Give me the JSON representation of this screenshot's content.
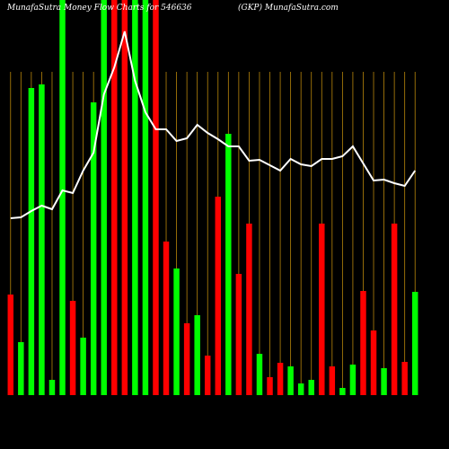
{
  "chart_data": {
    "type": "bar-line",
    "title": "MunafaSutra Money Flow Charts for 546636",
    "subtitle": "(GKP) MunafaSutra.com",
    "categories": [
      null,
      null,
      null,
      null,
      null,
      null,
      null,
      null,
      null,
      null,
      null,
      null,
      null,
      null,
      null,
      null,
      null,
      null,
      null,
      null,
      null,
      null,
      null,
      null,
      null,
      null,
      null,
      null,
      null,
      null,
      null,
      null,
      null,
      null,
      null,
      null,
      null,
      null,
      null,
      null
    ],
    "ylim": [
      0,
      440
    ],
    "background": "#000000",
    "separator_color": "#b8860b",
    "series": [
      {
        "type": "bar",
        "values": [
          112,
          59,
          342,
          346,
          17,
          440,
          105,
          64,
          326,
          440,
          440,
          440,
          440,
          440,
          440,
          171,
          141,
          80,
          89,
          44,
          221,
          291,
          135,
          191,
          46,
          20,
          36,
          32,
          13,
          17,
          191,
          32,
          8,
          34,
          116,
          72,
          30,
          191,
          37,
          115
        ],
        "colors": [
          "#ff0000",
          "#00ff00",
          "#00ff00",
          "#00ff00",
          "#00ff00",
          "#00ff00",
          "#ff0000",
          "#00ff00",
          "#00ff00",
          "#00ff00",
          "#ff0000",
          "#ff0000",
          "#00ff00",
          "#00ff00",
          "#ff0000",
          "#ff0000",
          "#00ff00",
          "#ff0000",
          "#00ff00",
          "#ff0000",
          "#ff0000",
          "#00ff00",
          "#ff0000",
          "#ff0000",
          "#00ff00",
          "#ff0000",
          "#ff0000",
          "#00ff00",
          "#00ff00",
          "#00ff00",
          "#ff0000",
          "#ff0000",
          "#00ff00",
          "#00ff00",
          "#ff0000",
          "#ff0000",
          "#00ff00",
          "#ff0000",
          "#ff0000",
          "#00ff00"
        ]
      },
      {
        "type": "line",
        "color": "#ffffff",
        "values": [
          197,
          198,
          205,
          211,
          207,
          228,
          225,
          250,
          270,
          335,
          365,
          405,
          350,
          315,
          296,
          296,
          283,
          286,
          301,
          292,
          285,
          277,
          277,
          261,
          262,
          256,
          250,
          263,
          257,
          255,
          263,
          263,
          266,
          277,
          258,
          239,
          240,
          236,
          233,
          250
        ]
      }
    ]
  }
}
